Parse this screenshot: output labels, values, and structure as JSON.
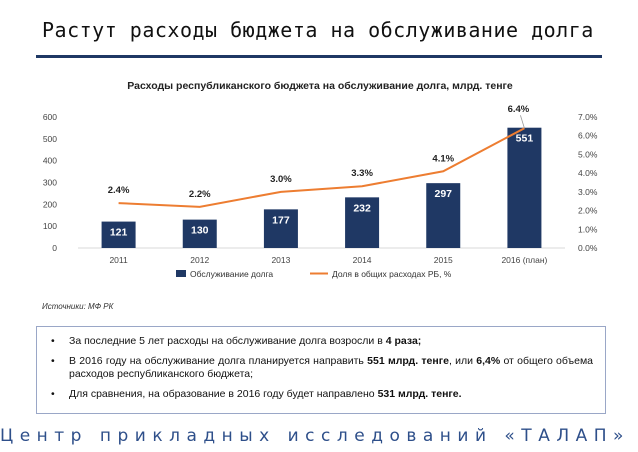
{
  "slide": {
    "title": "Растут расходы бюджета на обслуживание долга",
    "source": "Источники: МФ РК",
    "footer": "Центр прикладных исследований «ТАЛАП»"
  },
  "bullets": [
    {
      "parts": [
        {
          "text": "За последние 5 лет расходы на обслуживание долга возросли в ",
          "bold": false
        },
        {
          "text": "4 раза;",
          "bold": true
        }
      ]
    },
    {
      "parts": [
        {
          "text": "В 2016 году на обслуживание долга планируется направить ",
          "bold": false
        },
        {
          "text": "551 млрд. тенге",
          "bold": true
        },
        {
          "text": ", или ",
          "bold": false
        },
        {
          "text": "6,4%",
          "bold": true
        },
        {
          "text": " от общего объема расходов республиканского бюджета;",
          "bold": false
        }
      ]
    },
    {
      "parts": [
        {
          "text": "Для сравнения, на образование в 2016 году будет направлено ",
          "bold": false
        },
        {
          "text": "531 млрд. тенге.",
          "bold": true
        }
      ]
    }
  ],
  "colors": {
    "bar": "#1f3864",
    "line": "#ed7d31",
    "accent": "#2e4f8a"
  },
  "chart_data": {
    "type": "bar",
    "title": "Расходы республиканского бюджета на обслуживание долга, млрд. тенге",
    "categories": [
      "2011",
      "2012",
      "2013",
      "2014",
      "2015",
      "2016 (план)"
    ],
    "series": [
      {
        "name": "Обслуживание долга",
        "type": "bar",
        "axis": "left",
        "values": [
          121,
          130,
          177,
          232,
          297,
          551
        ],
        "labels": [
          "121",
          "130",
          "177",
          "232",
          "297",
          "551"
        ]
      },
      {
        "name": "Доля в общих расходах РБ, %",
        "type": "line",
        "axis": "right",
        "values": [
          2.4,
          2.2,
          3.0,
          3.3,
          4.1,
          6.4
        ],
        "labels": [
          "2.4%",
          "2.2%",
          "3.0%",
          "3.3%",
          "4.1%",
          "6.4%"
        ]
      }
    ],
    "y_left": {
      "min": 0,
      "max": 600,
      "ticks": [
        "0",
        "100",
        "200",
        "300",
        "400",
        "500",
        "600"
      ]
    },
    "y_right": {
      "min": 0,
      "max": 7,
      "ticks": [
        "0.0%",
        "1.0%",
        "2.0%",
        "3.0%",
        "4.0%",
        "5.0%",
        "6.0%",
        "7.0%"
      ]
    },
    "grid": false,
    "legend_position": "bottom"
  }
}
